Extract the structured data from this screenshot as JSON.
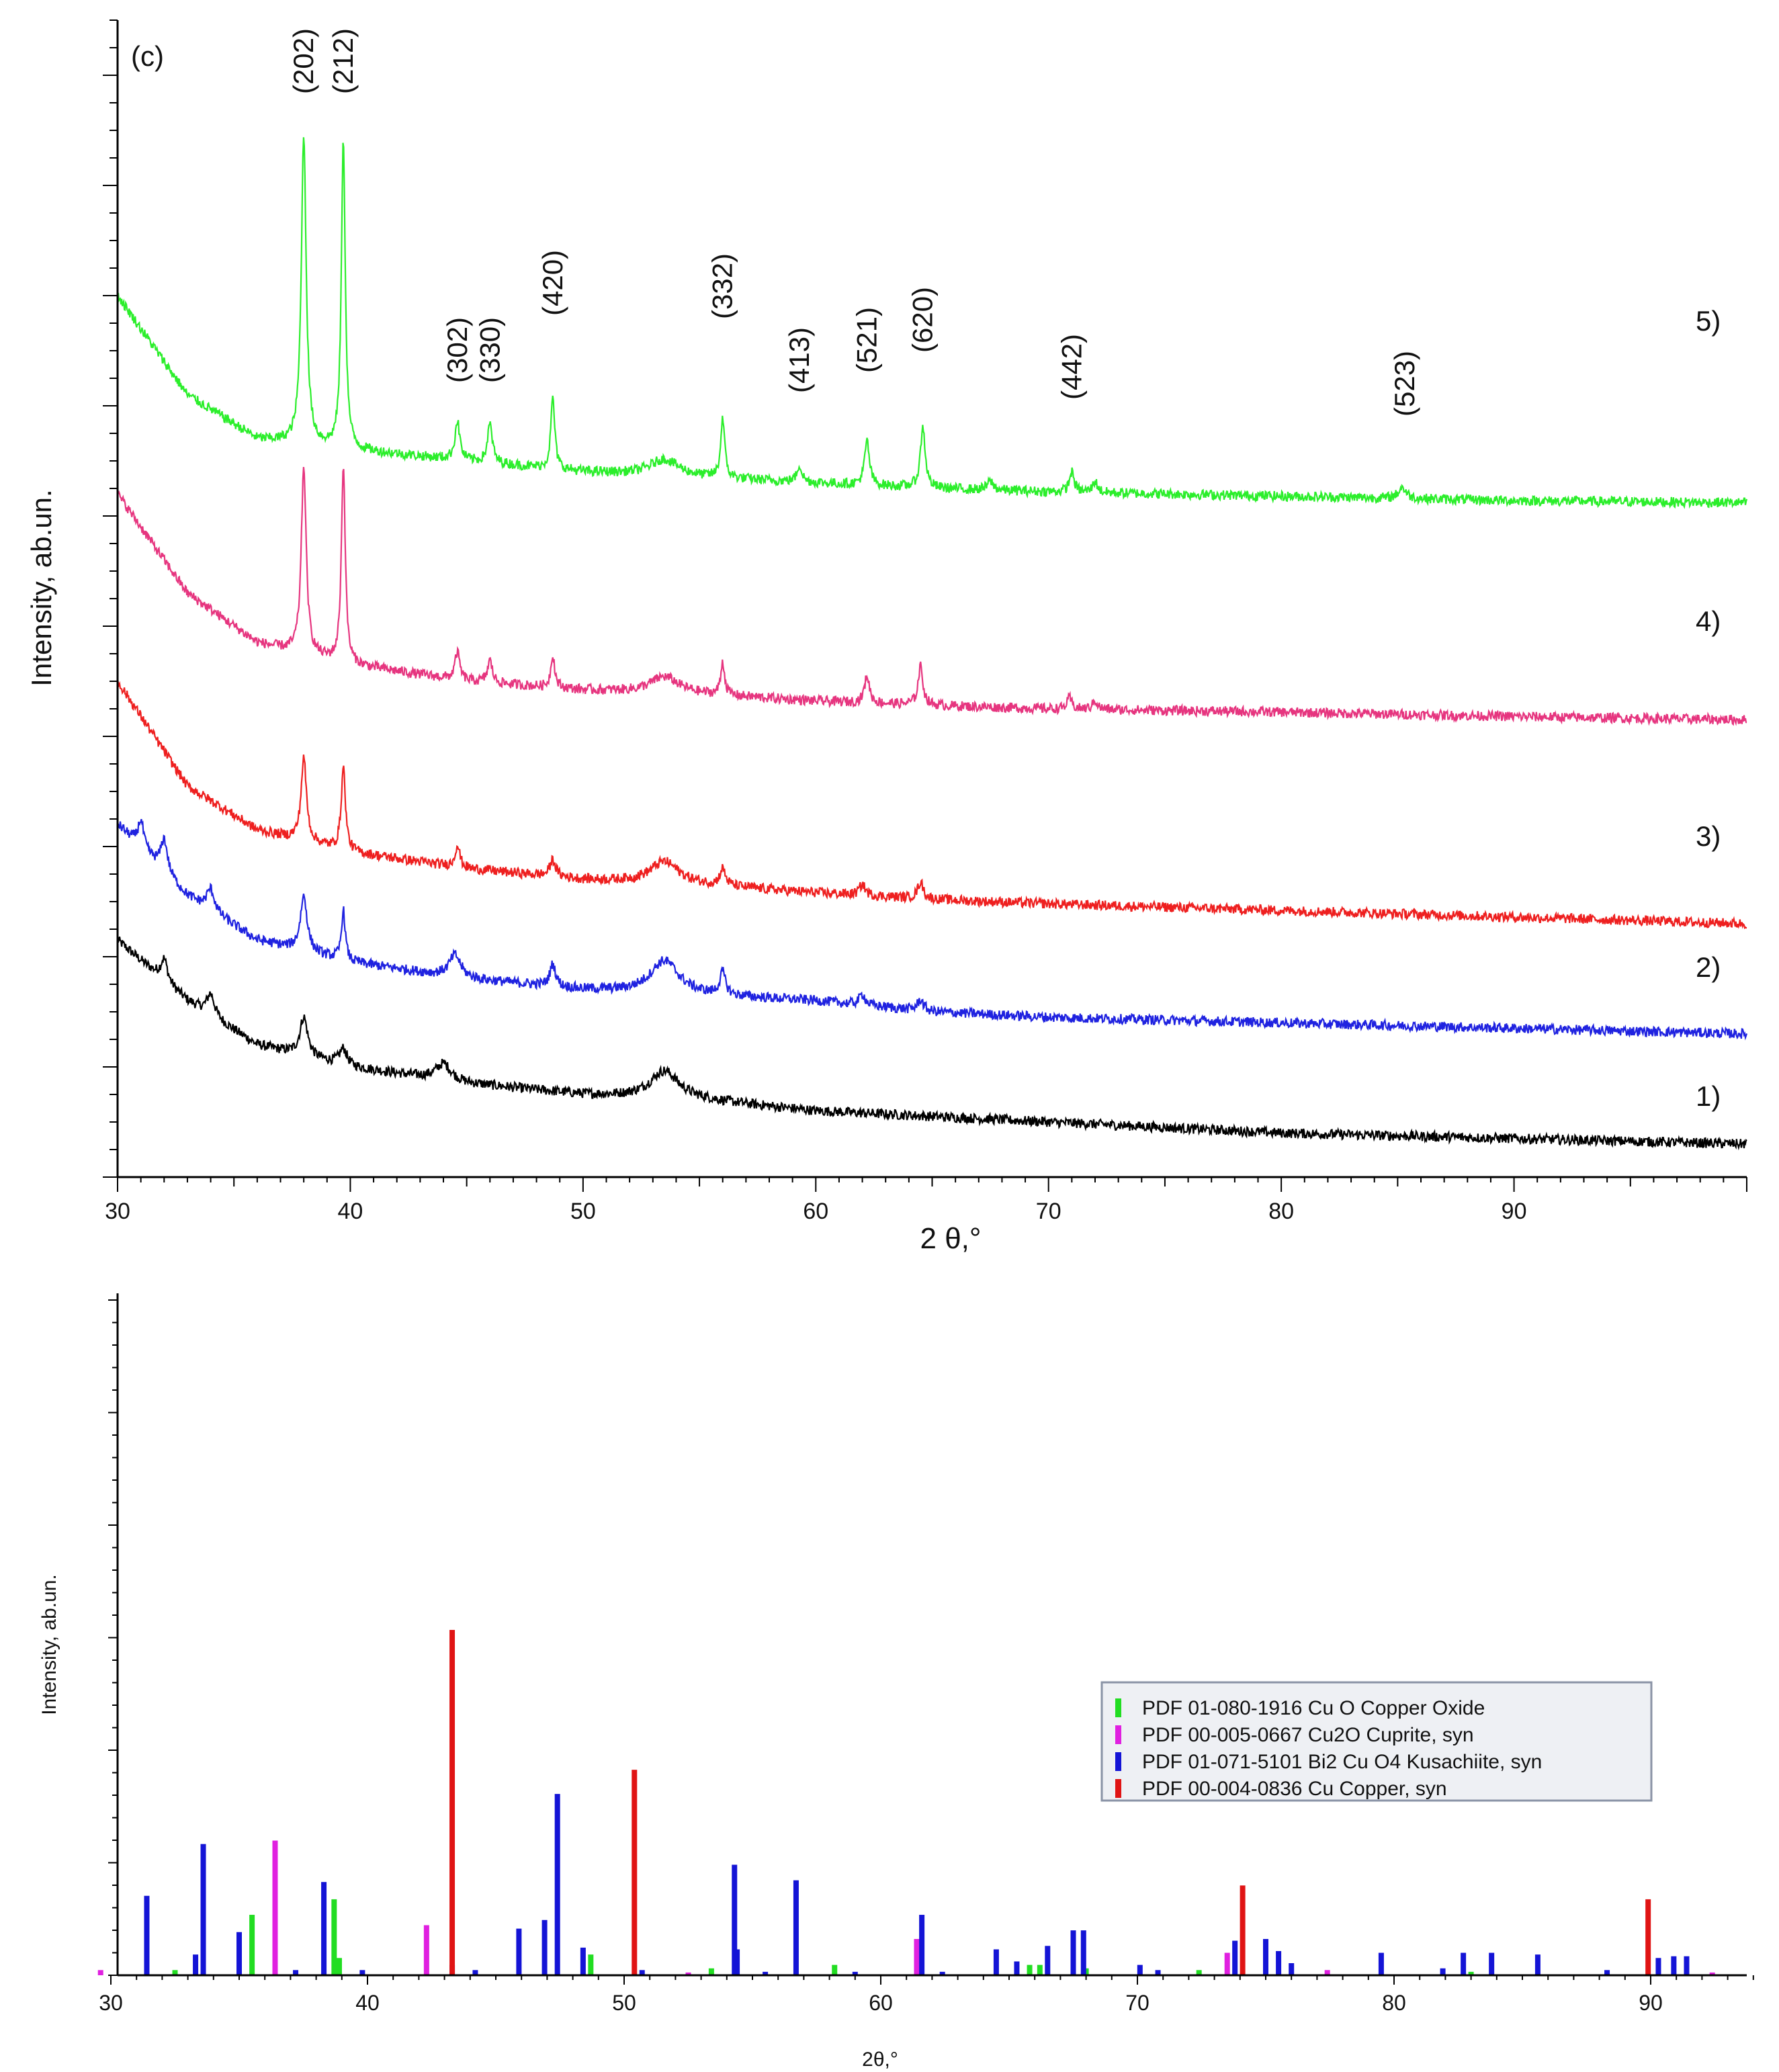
{
  "figure_label": "(c)",
  "colors": {
    "curve1": "#000000",
    "curve2": "#1f22e0",
    "curve3": "#ee1f1f",
    "curve4": "#e6357f",
    "curve5": "#2bee2b",
    "cuo": "#22dd22",
    "cu2o": "#e020e0",
    "bi2cuo4": "#1414d6",
    "cu": "#e01414",
    "legend_bg": "#eef0f4",
    "legend_border": "#8a93a6"
  },
  "chart_data": [
    {
      "type": "line",
      "title": "",
      "xlabel": "2 θ,°",
      "ylabel": "Intensity, ab.un.",
      "xlim": [
        30,
        100
      ],
      "ylim": [
        0,
        10.5
      ],
      "xticks": [
        30,
        40,
        50,
        60,
        70,
        80,
        90
      ],
      "series": [
        {
          "name": "1)",
          "color_key": "curve1",
          "baseline": [
            [
              30,
              2.15
            ],
            [
              33,
              1.6
            ],
            [
              36,
              1.2
            ],
            [
              40,
              1.0
            ],
            [
              45,
              0.85
            ],
            [
              50,
              0.75
            ],
            [
              55,
              0.7
            ],
            [
              60,
              0.6
            ],
            [
              65,
              0.55
            ],
            [
              70,
              0.5
            ],
            [
              80,
              0.4
            ],
            [
              90,
              0.35
            ],
            [
              100,
              0.3
            ]
          ],
          "peaks": [
            [
              32,
              0.2,
              0.35
            ],
            [
              34,
              0.2,
              0.4
            ],
            [
              38,
              0.35,
              0.4
            ],
            [
              39.7,
              0.15,
              0.4
            ],
            [
              44,
              0.15,
              0.8
            ],
            [
              53.5,
              0.25,
              1.5
            ]
          ]
        },
        {
          "name": "2)",
          "color_key": "curve2",
          "baseline": [
            [
              30,
              3.2
            ],
            [
              33,
              2.55
            ],
            [
              36,
              2.15
            ],
            [
              40,
              1.95
            ],
            [
              45,
              1.8
            ],
            [
              50,
              1.7
            ],
            [
              55,
              1.65
            ],
            [
              60,
              1.6
            ],
            [
              65,
              1.5
            ],
            [
              70,
              1.45
            ],
            [
              80,
              1.4
            ],
            [
              90,
              1.35
            ],
            [
              100,
              1.3
            ]
          ],
          "peaks": [
            [
              31,
              0.25,
              0.3
            ],
            [
              32,
              0.3,
              0.35
            ],
            [
              34,
              0.2,
              0.4
            ],
            [
              38,
              0.5,
              0.35
            ],
            [
              39.7,
              0.45,
              0.2
            ],
            [
              44.5,
              0.2,
              0.6
            ],
            [
              48.7,
              0.2,
              0.3
            ],
            [
              53.5,
              0.3,
              1.5
            ],
            [
              56,
              0.2,
              0.3
            ],
            [
              62,
              0.1,
              0.3
            ],
            [
              64.5,
              0.1,
              0.3
            ]
          ]
        },
        {
          "name": "3)",
          "color_key": "curve3",
          "baseline": [
            [
              30,
              4.5
            ],
            [
              33,
              3.55
            ],
            [
              36,
              3.15
            ],
            [
              40,
              2.95
            ],
            [
              45,
              2.8
            ],
            [
              50,
              2.7
            ],
            [
              55,
              2.65
            ],
            [
              60,
              2.58
            ],
            [
              65,
              2.52
            ],
            [
              70,
              2.48
            ],
            [
              80,
              2.42
            ],
            [
              90,
              2.36
            ],
            [
              100,
              2.3
            ]
          ],
          "peaks": [
            [
              38,
              0.75,
              0.28
            ],
            [
              39.7,
              0.75,
              0.22
            ],
            [
              44.6,
              0.2,
              0.25
            ],
            [
              48.7,
              0.15,
              0.3
            ],
            [
              53.5,
              0.2,
              1.5
            ],
            [
              56,
              0.15,
              0.3
            ],
            [
              62,
              0.1,
              0.3
            ],
            [
              64.5,
              0.15,
              0.3
            ]
          ]
        },
        {
          "name": "4)",
          "color_key": "curve4",
          "baseline": [
            [
              30,
              6.2
            ],
            [
              33,
              5.3
            ],
            [
              36,
              4.85
            ],
            [
              40,
              4.65
            ],
            [
              45,
              4.5
            ],
            [
              50,
              4.42
            ],
            [
              55,
              4.38
            ],
            [
              60,
              4.32
            ],
            [
              65,
              4.28
            ],
            [
              70,
              4.25
            ],
            [
              80,
              4.22
            ],
            [
              90,
              4.18
            ],
            [
              100,
              4.15
            ]
          ],
          "peaks": [
            [
              38,
              1.7,
              0.25
            ],
            [
              39.7,
              1.8,
              0.2
            ],
            [
              44.6,
              0.25,
              0.25
            ],
            [
              46,
              0.2,
              0.25
            ],
            [
              48.7,
              0.3,
              0.2
            ],
            [
              53.5,
              0.15,
              1.5
            ],
            [
              56,
              0.3,
              0.2
            ],
            [
              62.2,
              0.25,
              0.25
            ],
            [
              64.5,
              0.35,
              0.25
            ],
            [
              70.9,
              0.1,
              0.25
            ],
            [
              72,
              0.08,
              0.25
            ]
          ]
        },
        {
          "name": "5)",
          "color_key": "curve5",
          "baseline": [
            [
              30,
              8.0
            ],
            [
              33,
              7.1
            ],
            [
              36,
              6.7
            ],
            [
              40,
              6.6
            ],
            [
              45,
              6.5
            ],
            [
              50,
              6.4
            ],
            [
              55,
              6.35
            ],
            [
              60,
              6.3
            ],
            [
              65,
              6.25
            ],
            [
              70,
              6.22
            ],
            [
              80,
              6.18
            ],
            [
              90,
              6.14
            ],
            [
              100,
              6.12
            ]
          ],
          "peaks": [
            [
              38,
              2.8,
              0.25
            ],
            [
              39.7,
              2.8,
              0.2
            ],
            [
              44.6,
              0.35,
              0.25
            ],
            [
              46,
              0.35,
              0.25
            ],
            [
              48.7,
              0.65,
              0.2
            ],
            [
              53.5,
              0.15,
              1.5
            ],
            [
              56,
              0.55,
              0.2
            ],
            [
              59.3,
              0.15,
              0.25
            ],
            [
              62.2,
              0.4,
              0.25
            ],
            [
              64.6,
              0.55,
              0.25
            ],
            [
              67.5,
              0.08,
              0.3
            ],
            [
              71,
              0.18,
              0.25
            ],
            [
              72,
              0.1,
              0.25
            ],
            [
              85.2,
              0.1,
              0.4
            ]
          ]
        }
      ],
      "curve_labels": [
        "1)",
        "2)",
        "3)",
        "4)",
        "5)"
      ],
      "annotations": [
        {
          "text": "(202)",
          "x": 38.0
        },
        {
          "text": "(212)",
          "x": 39.7
        },
        {
          "text": "(302)",
          "x": 44.6
        },
        {
          "text": "(330)",
          "x": 46.0
        },
        {
          "text": "(420)",
          "x": 48.7
        },
        {
          "text": "(332)",
          "x": 56.0
        },
        {
          "text": "(413)",
          "x": 59.3
        },
        {
          "text": "(521)",
          "x": 62.2
        },
        {
          "text": "(620)",
          "x": 64.6
        },
        {
          "text": "(442)",
          "x": 71.0
        },
        {
          "text": "(523)",
          "x": 85.3
        }
      ]
    },
    {
      "type": "bar",
      "title": "",
      "xlabel": "2θ,°",
      "ylabel": "Intensity, ab.un.",
      "xlim": [
        29.5,
        94
      ],
      "ylim": [
        0,
        100
      ],
      "xticks": [
        30,
        40,
        50,
        60,
        70,
        80,
        90
      ],
      "legend_position": "right",
      "series": [
        {
          "name": "PDF 01-080-1916 Cu O Copper Oxide",
          "color_key": "cuo",
          "x": [
            32.5,
            35.5,
            38.7,
            38.9,
            48.7,
            53.4,
            58.2,
            61.5,
            65.8,
            66.2,
            68.0,
            72.4,
            75.0,
            83.0
          ],
          "values": [
            1.5,
            17.5,
            22,
            5,
            6,
            2,
            3,
            2,
            3,
            3,
            2,
            1.5,
            1.5,
            1
          ]
        },
        {
          "name": "PDF 00-005-0667 Cu2O Cuprite, syn",
          "color_key": "cu2o",
          "x": [
            29.6,
            36.4,
            42.3,
            52.5,
            61.4,
            73.5,
            77.4,
            92.4
          ],
          "values": [
            1.5,
            39,
            14.5,
            0.8,
            10.5,
            6.5,
            1.5,
            0.8
          ]
        },
        {
          "name": "PDF 01-071-5101 Bi2 Cu O4 Kusachiite, syn",
          "color_key": "bi2cuo4",
          "x": [
            31.4,
            33.3,
            33.6,
            35.0,
            37.2,
            38.3,
            39.8,
            43.3,
            44.2,
            45.9,
            46.9,
            47.4,
            48.4,
            50.7,
            54.3,
            54.4,
            55.5,
            56.7,
            59.0,
            61.6,
            62.4,
            64.5,
            65.3,
            66.5,
            67.5,
            67.9,
            70.1,
            70.8,
            73.8,
            75.0,
            75.5,
            76.0,
            79.5,
            81.9,
            82.7,
            83.8,
            85.6,
            88.3,
            90.3,
            90.9,
            91.4
          ],
          "values": [
            23,
            6,
            38,
            12.5,
            1.5,
            27,
            1.5,
            3,
            1.5,
            13.5,
            16,
            52.5,
            8,
            1.5,
            32,
            7.5,
            1,
            27.5,
            1,
            17.5,
            1,
            7.5,
            4,
            8.5,
            13,
            13,
            3,
            1.5,
            10,
            10.5,
            7,
            3.5,
            6.5,
            2,
            6.5,
            6.5,
            6,
            1.5,
            5,
            5.5,
            5.5
          ]
        },
        {
          "name": "PDF 00-004-0836 Cu Copper, syn",
          "color_key": "cu",
          "x": [
            43.3,
            50.4,
            74.1,
            89.9
          ],
          "values": [
            100,
            59.5,
            26,
            22
          ]
        }
      ]
    }
  ]
}
